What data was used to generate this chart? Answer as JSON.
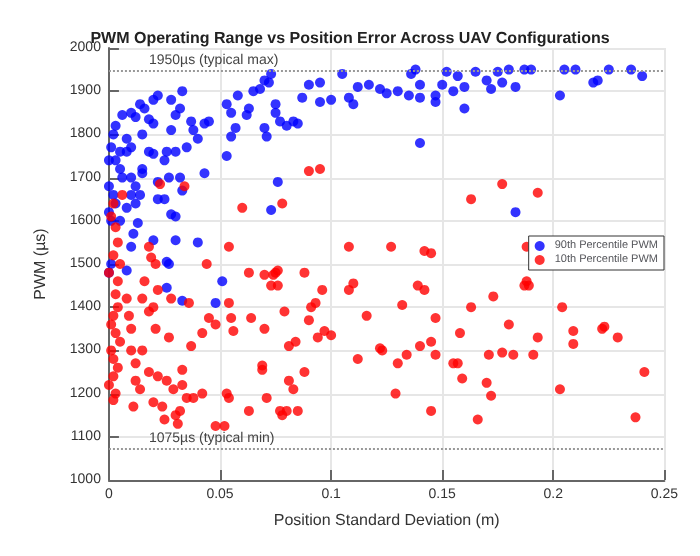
{
  "chart_data": {
    "type": "scatter",
    "title": "PWM Operating Range vs Position Error Across UAV Configurations",
    "xlabel": "Position Standard Deviation (m)",
    "ylabel": "PWM (µs)",
    "xlim": [
      0,
      0.25
    ],
    "xticks": [
      0,
      0.05,
      0.1,
      0.15,
      0.2,
      0.25
    ],
    "ylim": [
      1000,
      2000
    ],
    "yticks": [
      1000,
      1100,
      1200,
      1300,
      1400,
      1500,
      1600,
      1700,
      1800,
      1900,
      2000
    ],
    "grid": true,
    "legend": "right",
    "marker": "circle",
    "ref_lines": [
      {
        "axis": "y",
        "value": 1950,
        "label": "1950µs (typical max)",
        "color": "#999999",
        "line_style": "dotted"
      },
      {
        "axis": "y",
        "value": 1075,
        "label": "1075µs (typical min)",
        "color": "#999999",
        "line_style": "dotted"
      }
    ],
    "series": [
      {
        "name": "90th Percentile PWM",
        "color": "#0000ff",
        "x": [
          0.24,
          0.235,
          0.225,
          0.22,
          0.218,
          0.21,
          0.205,
          0.203,
          0.19,
          0.187,
          0.183,
          0.18,
          0.177,
          0.175,
          0.172,
          0.17,
          0.165,
          0.16,
          0.16,
          0.157,
          0.155,
          0.152,
          0.15,
          0.147,
          0.147,
          0.14,
          0.14,
          0.138,
          0.136,
          0.135,
          0.13,
          0.125,
          0.122,
          0.117,
          0.112,
          0.11,
          0.108,
          0.105,
          0.1,
          0.095,
          0.095,
          0.09,
          0.087,
          0.085,
          0.083,
          0.08,
          0.077,
          0.075,
          0.075,
          0.073,
          0.072,
          0.07,
          0.068,
          0.065,
          0.07,
          0.071,
          0.063,
          0.062,
          0.058,
          0.053,
          0.055,
          0.057,
          0.055,
          0.053,
          0.045,
          0.043,
          0.04,
          0.038,
          0.037,
          0.035,
          0.033,
          0.032,
          0.03,
          0.028,
          0.028,
          0.026,
          0.025,
          0.022,
          0.02,
          0.02,
          0.018,
          0.016,
          0.015,
          0.014,
          0.012,
          0.01,
          0.01,
          0.008,
          0.006,
          0.005,
          0.003,
          0.002,
          0.001,
          0,
          0.003,
          0.005,
          0.008,
          0.01,
          0.012,
          0.015,
          0.018,
          0.02,
          0.022,
          0.025,
          0.027,
          0.03,
          0.032,
          0.033,
          0.043,
          0,
          0.002,
          0.003,
          0.006,
          0.008,
          0.01,
          0.012,
          0.014,
          0.015,
          0,
          0.001,
          0.013,
          0.02,
          0.022,
          0.028,
          0.03,
          0.03,
          0.04,
          0.026,
          0.001,
          0,
          0.008,
          0.026,
          0.033,
          0.048,
          0.051,
          0.027,
          0.011,
          0.076,
          0.073,
          0.14,
          0.183,
          0.01,
          0.005
        ],
        "values": [
          1935,
          1950,
          1950,
          1925,
          1920,
          1950,
          1950,
          1890,
          1950,
          1950,
          1910,
          1950,
          1920,
          1945,
          1905,
          1925,
          1945,
          1860,
          1910,
          1935,
          1900,
          1945,
          1915,
          1875,
          1890,
          1885,
          1915,
          1950,
          1940,
          1890,
          1900,
          1895,
          1905,
          1915,
          1910,
          1870,
          1885,
          1940,
          1880,
          1875,
          1920,
          1915,
          1885,
          1825,
          1830,
          1820,
          1830,
          1850,
          1870,
          1940,
          1920,
          1925,
          1905,
          1900,
          1815,
          1795,
          1860,
          1845,
          1890,
          1870,
          1850,
          1815,
          1795,
          1750,
          1830,
          1825,
          1790,
          1810,
          1830,
          1770,
          1900,
          1860,
          1845,
          1880,
          1810,
          1760,
          1740,
          1890,
          1880,
          1825,
          1835,
          1860,
          1800,
          1870,
          1840,
          1850,
          1770,
          1790,
          1845,
          1760,
          1820,
          1800,
          1770,
          1740,
          1740,
          1720,
          1760,
          1700,
          1680,
          1710,
          1760,
          1755,
          1690,
          1650,
          1700,
          1760,
          1700,
          1670,
          1710,
          1680,
          1660,
          1640,
          1700,
          1630,
          1660,
          1640,
          1660,
          1720,
          1620,
          1600,
          1595,
          1555,
          1650,
          1615,
          1610,
          1555,
          1550,
          1505,
          1500,
          1480,
          1485,
          1445,
          1415,
          1410,
          1460,
          1500,
          1570,
          1690,
          1625,
          1780,
          1620,
          1540,
          1600
        ]
      },
      {
        "name": "10th Percentile PWM",
        "color": "#ff0000",
        "x": [
          0.002,
          0.001,
          0.003,
          0.004,
          0.002,
          0.005,
          0,
          0.004,
          0.003,
          0.004,
          0.002,
          0.001,
          0.003,
          0.005,
          0.001,
          0.002,
          0.004,
          0.002,
          0,
          0.003,
          0.002,
          0.006,
          0.008,
          0.009,
          0.01,
          0.01,
          0.012,
          0.012,
          0.011,
          0.014,
          0.015,
          0.015,
          0.016,
          0.018,
          0.018,
          0.02,
          0.02,
          0.022,
          0.022,
          0.021,
          0.023,
          0.018,
          0.019,
          0.021,
          0.024,
          0.025,
          0.026,
          0.027,
          0.028,
          0.029,
          0.03,
          0.031,
          0.032,
          0.033,
          0.033,
          0.035,
          0.036,
          0.034,
          0.037,
          0.038,
          0.042,
          0.042,
          0.044,
          0.045,
          0.048,
          0.048,
          0.052,
          0.053,
          0.054,
          0.054,
          0.055,
          0.056,
          0.054,
          0.06,
          0.063,
          0.063,
          0.064,
          0.069,
          0.069,
          0.07,
          0.07,
          0.071,
          0.073,
          0.074,
          0.075,
          0.076,
          0.076,
          0.078,
          0.077,
          0.078,
          0.079,
          0.08,
          0.081,
          0.081,
          0.083,
          0.084,
          0.085,
          0.088,
          0.088,
          0.09,
          0.091,
          0.093,
          0.094,
          0.096,
          0.097,
          0.1,
          0.09,
          0.095,
          0.108,
          0.11,
          0.112,
          0.116,
          0.108,
          0.122,
          0.123,
          0.129,
          0.13,
          0.132,
          0.134,
          0.139,
          0.14,
          0.142,
          0.145,
          0.145,
          0.147,
          0.147,
          0.155,
          0.157,
          0.158,
          0.159,
          0.163,
          0.166,
          0.17,
          0.171,
          0.172,
          0.173,
          0.177,
          0.18,
          0.182,
          0.187,
          0.188,
          0.189,
          0.191,
          0.193,
          0.203,
          0.204,
          0.209,
          0.209,
          0.222,
          0.223,
          0.229,
          0.237,
          0.241,
          0.145,
          0.142,
          0.127,
          0.163,
          0.177,
          0.188,
          0.193
        ],
        "values": [
          1640,
          1610,
          1585,
          1550,
          1520,
          1500,
          1480,
          1460,
          1430,
          1400,
          1380,
          1360,
          1340,
          1320,
          1300,
          1280,
          1260,
          1240,
          1220,
          1200,
          1185,
          1660,
          1420,
          1380,
          1350,
          1300,
          1270,
          1230,
          1170,
          1210,
          1300,
          1420,
          1460,
          1390,
          1250,
          1180,
          1400,
          1440,
          1240,
          1350,
          1685,
          1540,
          1515,
          1500,
          1170,
          1140,
          1230,
          1330,
          1420,
          1210,
          1150,
          1130,
          1160,
          1220,
          1255,
          1190,
          1410,
          1680,
          1310,
          1190,
          1340,
          1200,
          1500,
          1375,
          1360,
          1125,
          1125,
          1200,
          1190,
          1410,
          1375,
          1345,
          1540,
          1630,
          1480,
          1160,
          1375,
          1265,
          1255,
          1350,
          1475,
          1190,
          1450,
          1475,
          1480,
          1485,
          1450,
          1640,
          1160,
          1150,
          1390,
          1160,
          1230,
          1310,
          1210,
          1320,
          1160,
          1250,
          1480,
          1370,
          1400,
          1410,
          1330,
          1440,
          1345,
          1335,
          1715,
          1720,
          1440,
          1455,
          1280,
          1380,
          1540,
          1305,
          1300,
          1200,
          1270,
          1405,
          1290,
          1450,
          1310,
          1440,
          1320,
          1160,
          1290,
          1375,
          1270,
          1270,
          1340,
          1235,
          1400,
          1140,
          1225,
          1290,
          1195,
          1425,
          1295,
          1360,
          1290,
          1450,
          1460,
          1450,
          1290,
          1330,
          1210,
          1400,
          1345,
          1315,
          1350,
          1355,
          1330,
          1145,
          1250,
          1525,
          1530,
          1540,
          1650,
          1685,
          1540,
          1665
        ]
      }
    ]
  }
}
